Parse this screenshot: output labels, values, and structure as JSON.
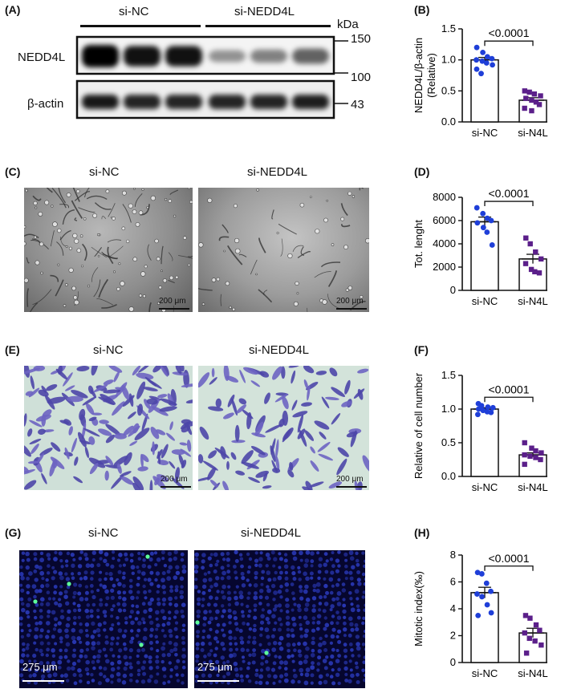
{
  "panels": {
    "A": {
      "label": "(A)",
      "group_left": "si-NC",
      "group_right": "si-NEDD4L",
      "unit": "kDa",
      "row1": "NEDD4L",
      "row2": "β-actin",
      "m150": "150",
      "m100": "100",
      "m43": "43",
      "nedd4l_band_intensity": [
        1.0,
        0.88,
        0.88,
        0.35,
        0.42,
        0.55
      ],
      "actin_band_intensity": [
        0.9,
        0.85,
        0.85,
        0.85,
        0.85,
        0.88
      ]
    },
    "B": {
      "label": "(B)"
    },
    "C": {
      "label": "(C)",
      "left": "si-NC",
      "right": "si-NEDD4L",
      "scale_left": "200 μm",
      "scale_right": "200 μm",
      "image_type": "tube-formation-brightfield"
    },
    "D": {
      "label": "(D)"
    },
    "E": {
      "label": "(E)",
      "left": "si-NC",
      "right": "si-NEDD4L",
      "scale_left": "200 μm",
      "scale_right": "200 μm",
      "image_type": "transwell-crystal-violet"
    },
    "F": {
      "label": "(F)"
    },
    "G": {
      "label": "(G)",
      "left": "si-NC",
      "right": "si-NEDD4L",
      "scale_left": "275 μm",
      "scale_right": "275 μm",
      "image_type": "fluorescence-dapi-mitotic"
    },
    "H": {
      "label": "(H)"
    }
  },
  "colors": {
    "nc": "#1f3fd8",
    "n4l": "#5b1f8a",
    "text": "#111111"
  },
  "chart_data": [
    {
      "panel": "B",
      "type": "scatter",
      "title": "",
      "ylabel": "NEDD4L/β-actin\n(Relative)",
      "categories": [
        "si-NC",
        "si-N4L"
      ],
      "ylim": [
        0,
        1.5
      ],
      "yticks": [
        0.0,
        0.5,
        1.0,
        1.5
      ],
      "ytick_labels": [
        "0.0",
        "0.5",
        "1.0",
        "1.5"
      ],
      "means": [
        1.0,
        0.35
      ],
      "sem": [
        0.04,
        0.04
      ],
      "points": [
        [
          1.2,
          1.12,
          1.05,
          1.02,
          1.0,
          0.98,
          0.95,
          0.92,
          0.85,
          0.78
        ],
        [
          0.5,
          0.48,
          0.45,
          0.42,
          0.38,
          0.35,
          0.32,
          0.28,
          0.22,
          0.18
        ]
      ],
      "pvalue": "<0.0001"
    },
    {
      "panel": "D",
      "type": "scatter",
      "title": "",
      "ylabel": "Tot. lenght",
      "categories": [
        "si-NC",
        "si-N4L"
      ],
      "ylim": [
        0,
        8000
      ],
      "yticks": [
        0,
        2000,
        4000,
        6000,
        8000
      ],
      "ytick_labels": [
        "0",
        "2000",
        "4000",
        "6000",
        "8000"
      ],
      "means": [
        5900,
        2700
      ],
      "sem": [
        400,
        400
      ],
      "points": [
        [
          7100,
          6600,
          6200,
          6000,
          5800,
          5400,
          5000,
          3900
        ],
        [
          4500,
          4000,
          3300,
          2700,
          2300,
          1800,
          1600,
          1500
        ]
      ],
      "pvalue": "<0.0001"
    },
    {
      "panel": "F",
      "type": "scatter",
      "title": "",
      "ylabel": "Relative of cell number",
      "categories": [
        "si-NC",
        "si-N4L"
      ],
      "ylim": [
        0,
        1.5
      ],
      "yticks": [
        0.0,
        0.5,
        1.0,
        1.5
      ],
      "ytick_labels": [
        "0.0",
        "0.5",
        "1.0",
        "1.5"
      ],
      "means": [
        1.0,
        0.32
      ],
      "sem": [
        0.02,
        0.03
      ],
      "points": [
        [
          1.08,
          1.05,
          1.03,
          1.02,
          1.0,
          0.98,
          0.96,
          0.95,
          0.92
        ],
        [
          0.5,
          0.42,
          0.38,
          0.35,
          0.32,
          0.3,
          0.28,
          0.25,
          0.18
        ]
      ],
      "pvalue": "<0.0001"
    },
    {
      "panel": "H",
      "type": "scatter",
      "title": "",
      "ylabel": "Mitotic index(‰)",
      "categories": [
        "si-NC",
        "si-N4L"
      ],
      "ylim": [
        0,
        8
      ],
      "yticks": [
        0,
        2,
        4,
        6,
        8
      ],
      "ytick_labels": [
        "0",
        "2",
        "4",
        "6",
        "8"
      ],
      "means": [
        5.2,
        2.2
      ],
      "sem": [
        0.4,
        0.35
      ],
      "points": [
        [
          6.7,
          6.6,
          5.9,
          5.3,
          5.1,
          4.9,
          4.3,
          3.7,
          3.5
        ],
        [
          3.5,
          3.3,
          2.8,
          2.4,
          2.2,
          1.8,
          1.6,
          1.3,
          0.7
        ]
      ],
      "pvalue": "<0.0001"
    }
  ]
}
